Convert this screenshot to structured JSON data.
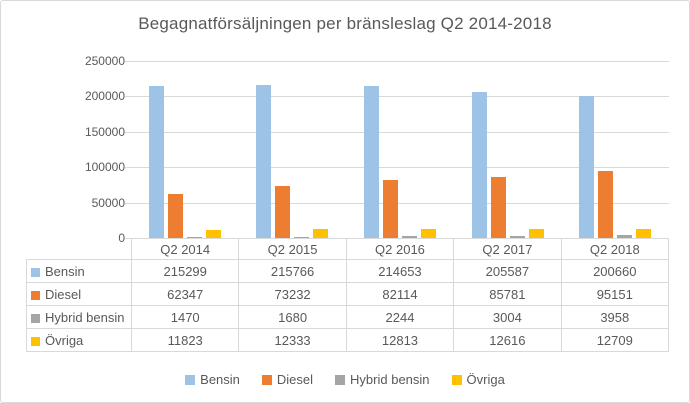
{
  "chart_data": {
    "type": "bar",
    "title": "Begagnatförsäljningen per bränsleslag Q2 2014-2018",
    "categories": [
      "Q2 2014",
      "Q2 2015",
      "Q2 2016",
      "Q2 2017",
      "Q2 2018"
    ],
    "series": [
      {
        "name": "Bensin",
        "color": "#9dc3e6",
        "values": [
          215299,
          215766,
          214653,
          205587,
          200660
        ]
      },
      {
        "name": "Diesel",
        "color": "#ed7d31",
        "values": [
          62347,
          73232,
          82114,
          85781,
          95151
        ]
      },
      {
        "name": "Hybrid bensin",
        "color": "#a5a5a5",
        "values": [
          1470,
          1680,
          2244,
          3004,
          3958
        ]
      },
      {
        "name": "Övriga",
        "color": "#ffc000",
        "values": [
          11823,
          12333,
          12813,
          12616,
          12709
        ]
      }
    ],
    "xlabel": "",
    "ylabel": "",
    "ylim": [
      0,
      250000
    ],
    "yticks": [
      0,
      50000,
      100000,
      150000,
      200000,
      250000
    ],
    "grid": true,
    "legend_position": "bottom",
    "data_table_shown": true
  },
  "style_colors": {
    "text": "#595959",
    "gridline": "#d9d9d9",
    "frame_border": "#d9d9d9",
    "background": "#ffffff"
  }
}
